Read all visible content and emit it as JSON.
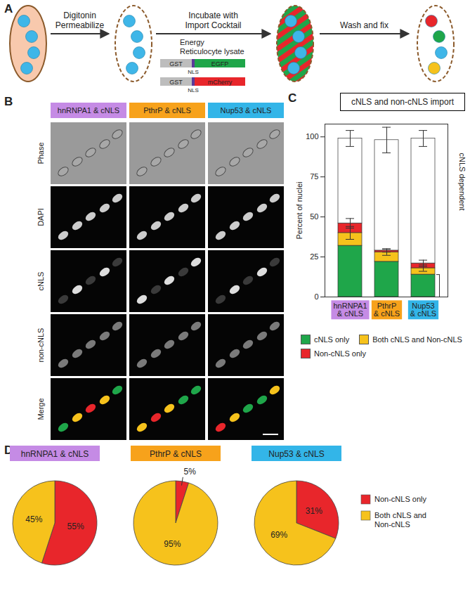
{
  "panel_a": {
    "letter": "A",
    "steps": [
      "Digitonin Permeabilize",
      "Incubate with Import Cocktail",
      "Wash and fix"
    ],
    "cocktail": [
      "Energy",
      "Reticulocyte lysate"
    ],
    "constructs": [
      {
        "tag": "GST",
        "signal": "NLS",
        "protein": "EGFP",
        "color": "#1fa64a"
      },
      {
        "tag": "GST",
        "signal": "NLS",
        "protein": "mCherry",
        "color": "#e8262b"
      }
    ]
  },
  "panel_b": {
    "letter": "B",
    "columns": [
      {
        "label": "hnRNPA1 & cNLS",
        "color": "#c58be5"
      },
      {
        "label": "PthrP & cNLS",
        "color": "#f7a21b"
      },
      {
        "label": "Nup53 & cNLS",
        "color": "#33b5e8"
      }
    ],
    "rows": [
      "Phase",
      "DAPI",
      "cNLS",
      "non-cNLS",
      "Merge"
    ]
  },
  "panel_c": {
    "letter": "C"
  },
  "panel_d": {
    "letter": "D"
  },
  "chart_data": [
    {
      "type": "bar",
      "stacked": true,
      "title": "cNLS and non-cNLS import",
      "categories": [
        "hnRNPA1 & cNLS",
        "PthrP & cNLS",
        "Nup53 & cNLS"
      ],
      "category_colors": [
        "#c58be5",
        "#f7a21b",
        "#33b5e8"
      ],
      "y_label": "Percent of nuclei",
      "ylim": [
        0,
        108
      ],
      "yticks": [
        0,
        25,
        50,
        75,
        100
      ],
      "legend": "bottom",
      "series": [
        {
          "name": "cNLS only",
          "color": "#1fa64a",
          "values": [
            32,
            22,
            14
          ]
        },
        {
          "name": "Both cNLS and Non-cNLS",
          "color": "#f6c21c",
          "values": [
            8,
            6,
            4
          ],
          "errors": [
            4,
            2,
            2
          ]
        },
        {
          "name": "Non-cNLS only",
          "color": "#e8262b",
          "values": [
            6,
            1,
            3
          ],
          "errors": [
            3,
            1,
            2
          ]
        },
        {
          "name": null,
          "color": "#ffffff",
          "values": [
            53,
            69,
            78
          ],
          "errors": [
            5,
            8,
            5
          ]
        }
      ],
      "annotations": [
        {
          "text": "cNLS dependent",
          "y1": 0,
          "y2": 14
        }
      ]
    },
    {
      "type": "pie",
      "title": "hnRNPA1 & cNLS",
      "color": "#c58be5",
      "categories": [
        "Non-cNLS only",
        "Both cNLS and Non-cNLS"
      ],
      "colors": [
        "#e8262b",
        "#f6c21c"
      ],
      "values": [
        55,
        45
      ],
      "value_labels": [
        "55%",
        "45%"
      ],
      "data_labels": true
    },
    {
      "type": "pie",
      "title": "PthrP & cNLS",
      "color": "#f7a21b",
      "categories": [
        "Non-cNLS only",
        "Both cNLS and Non-cNLS"
      ],
      "colors": [
        "#e8262b",
        "#f6c21c"
      ],
      "values": [
        5,
        95
      ],
      "value_labels": [
        "5%",
        "95%"
      ],
      "data_labels": true
    },
    {
      "type": "pie",
      "title": "Nup53 & cNLS",
      "color": "#33b5e8",
      "categories": [
        "Non-cNLS only",
        "Both cNLS and Non-cNLS"
      ],
      "colors": [
        "#e8262b",
        "#f6c21c"
      ],
      "values": [
        31,
        69
      ],
      "value_labels": [
        "31%",
        "69%"
      ],
      "data_labels": true,
      "legend": "right"
    }
  ]
}
